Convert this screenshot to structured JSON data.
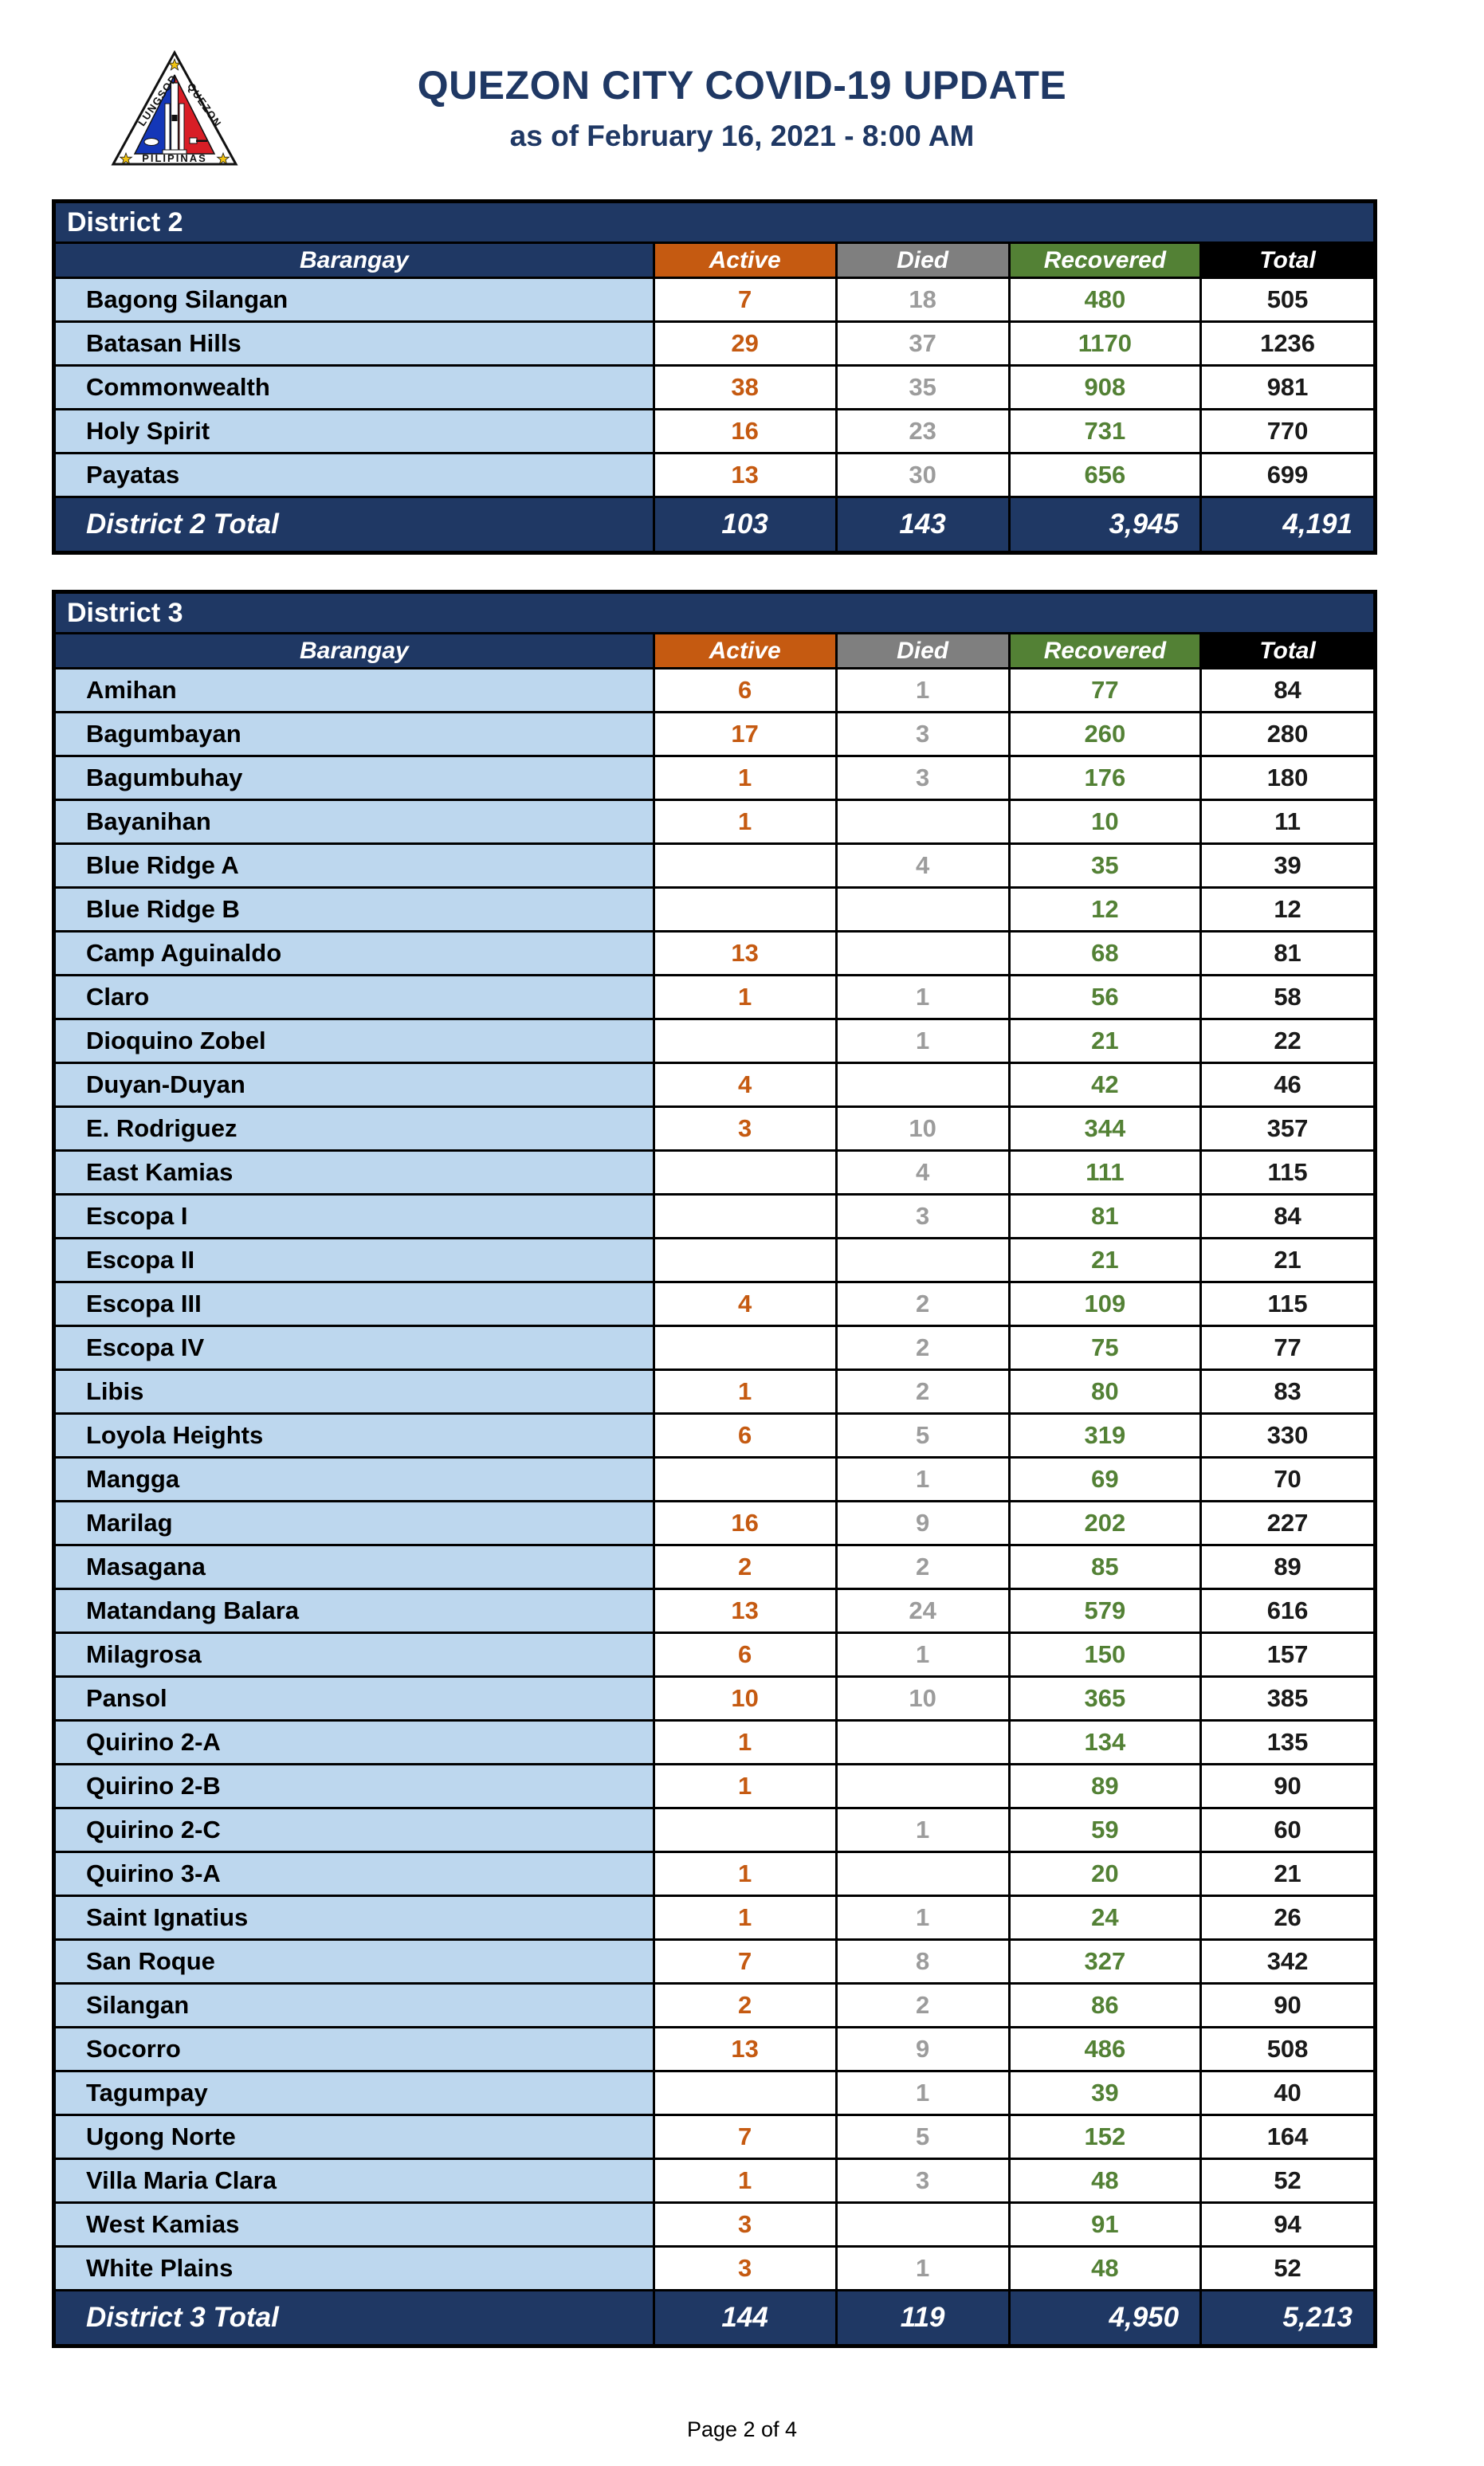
{
  "header": {
    "title": "QUEZON CITY COVID-19 UPDATE",
    "subtitle": "as of February 16, 2021 - 8:00 AM",
    "logo": {
      "label_left": "LUNGSOD",
      "label_right": "QUEZON",
      "label_bottom": "PILIPINAS"
    }
  },
  "columns": {
    "barangay": "Barangay",
    "active": "Active",
    "died": "Died",
    "recovered": "Recovered",
    "total": "Total"
  },
  "colors": {
    "navy": "#1F3864",
    "orange": "#C55A11",
    "gray": "#7F7F7F",
    "green": "#538135",
    "black": "#000000",
    "row_blue": "#BDD7EE",
    "died_value": "#9C9C9C",
    "title_navy": "#1F3864"
  },
  "tables": [
    {
      "district": "District 2",
      "rows": [
        {
          "barangay": "Bagong Silangan",
          "active": "7",
          "died": "18",
          "recovered": "480",
          "total": "505"
        },
        {
          "barangay": "Batasan Hills",
          "active": "29",
          "died": "37",
          "recovered": "1170",
          "total": "1236"
        },
        {
          "barangay": "Commonwealth",
          "active": "38",
          "died": "35",
          "recovered": "908",
          "total": "981"
        },
        {
          "barangay": "Holy Spirit",
          "active": "16",
          "died": "23",
          "recovered": "731",
          "total": "770"
        },
        {
          "barangay": "Payatas",
          "active": "13",
          "died": "30",
          "recovered": "656",
          "total": "699"
        }
      ],
      "total": {
        "label": "District 2 Total",
        "active": "103",
        "died": "143",
        "recovered": "3,945",
        "total": "4,191"
      }
    },
    {
      "district": "District 3",
      "rows": [
        {
          "barangay": "Amihan",
          "active": "6",
          "died": "1",
          "recovered": "77",
          "total": "84"
        },
        {
          "barangay": "Bagumbayan",
          "active": "17",
          "died": "3",
          "recovered": "260",
          "total": "280"
        },
        {
          "barangay": "Bagumbuhay",
          "active": "1",
          "died": "3",
          "recovered": "176",
          "total": "180"
        },
        {
          "barangay": "Bayanihan",
          "active": "1",
          "died": "",
          "recovered": "10",
          "total": "11"
        },
        {
          "barangay": "Blue Ridge A",
          "active": "",
          "died": "4",
          "recovered": "35",
          "total": "39"
        },
        {
          "barangay": "Blue Ridge B",
          "active": "",
          "died": "",
          "recovered": "12",
          "total": "12"
        },
        {
          "barangay": "Camp Aguinaldo",
          "active": "13",
          "died": "",
          "recovered": "68",
          "total": "81"
        },
        {
          "barangay": "Claro",
          "active": "1",
          "died": "1",
          "recovered": "56",
          "total": "58"
        },
        {
          "barangay": "Dioquino Zobel",
          "active": "",
          "died": "1",
          "recovered": "21",
          "total": "22"
        },
        {
          "barangay": "Duyan-Duyan",
          "active": "4",
          "died": "",
          "recovered": "42",
          "total": "46"
        },
        {
          "barangay": "E. Rodriguez",
          "active": "3",
          "died": "10",
          "recovered": "344",
          "total": "357"
        },
        {
          "barangay": "East Kamias",
          "active": "",
          "died": "4",
          "recovered": "111",
          "total": "115"
        },
        {
          "barangay": "Escopa I",
          "active": "",
          "died": "3",
          "recovered": "81",
          "total": "84"
        },
        {
          "barangay": "Escopa II",
          "active": "",
          "died": "",
          "recovered": "21",
          "total": "21"
        },
        {
          "barangay": "Escopa III",
          "active": "4",
          "died": "2",
          "recovered": "109",
          "total": "115"
        },
        {
          "barangay": "Escopa IV",
          "active": "",
          "died": "2",
          "recovered": "75",
          "total": "77"
        },
        {
          "barangay": "Libis",
          "active": "1",
          "died": "2",
          "recovered": "80",
          "total": "83"
        },
        {
          "barangay": "Loyola Heights",
          "active": "6",
          "died": "5",
          "recovered": "319",
          "total": "330"
        },
        {
          "barangay": "Mangga",
          "active": "",
          "died": "1",
          "recovered": "69",
          "total": "70"
        },
        {
          "barangay": "Marilag",
          "active": "16",
          "died": "9",
          "recovered": "202",
          "total": "227"
        },
        {
          "barangay": "Masagana",
          "active": "2",
          "died": "2",
          "recovered": "85",
          "total": "89"
        },
        {
          "barangay": "Matandang Balara",
          "active": "13",
          "died": "24",
          "recovered": "579",
          "total": "616"
        },
        {
          "barangay": "Milagrosa",
          "active": "6",
          "died": "1",
          "recovered": "150",
          "total": "157"
        },
        {
          "barangay": "Pansol",
          "active": "10",
          "died": "10",
          "recovered": "365",
          "total": "385"
        },
        {
          "barangay": "Quirino 2-A",
          "active": "1",
          "died": "",
          "recovered": "134",
          "total": "135"
        },
        {
          "barangay": "Quirino 2-B",
          "active": "1",
          "died": "",
          "recovered": "89",
          "total": "90"
        },
        {
          "barangay": "Quirino 2-C",
          "active": "",
          "died": "1",
          "recovered": "59",
          "total": "60"
        },
        {
          "barangay": "Quirino 3-A",
          "active": "1",
          "died": "",
          "recovered": "20",
          "total": "21"
        },
        {
          "barangay": "Saint Ignatius",
          "active": "1",
          "died": "1",
          "recovered": "24",
          "total": "26"
        },
        {
          "barangay": "San Roque",
          "active": "7",
          "died": "8",
          "recovered": "327",
          "total": "342"
        },
        {
          "barangay": "Silangan",
          "active": "2",
          "died": "2",
          "recovered": "86",
          "total": "90"
        },
        {
          "barangay": "Socorro",
          "active": "13",
          "died": "9",
          "recovered": "486",
          "total": "508"
        },
        {
          "barangay": "Tagumpay",
          "active": "",
          "died": "1",
          "recovered": "39",
          "total": "40"
        },
        {
          "barangay": "Ugong Norte",
          "active": "7",
          "died": "5",
          "recovered": "152",
          "total": "164"
        },
        {
          "barangay": "Villa Maria Clara",
          "active": "1",
          "died": "3",
          "recovered": "48",
          "total": "52"
        },
        {
          "barangay": "West Kamias",
          "active": "3",
          "died": "",
          "recovered": "91",
          "total": "94"
        },
        {
          "barangay": "White Plains",
          "active": "3",
          "died": "1",
          "recovered": "48",
          "total": "52"
        }
      ],
      "total": {
        "label": "District 3 Total",
        "active": "144",
        "died": "119",
        "recovered": "4,950",
        "total": "5,213"
      }
    }
  ],
  "footer": {
    "page": "Page 2 of 4"
  }
}
